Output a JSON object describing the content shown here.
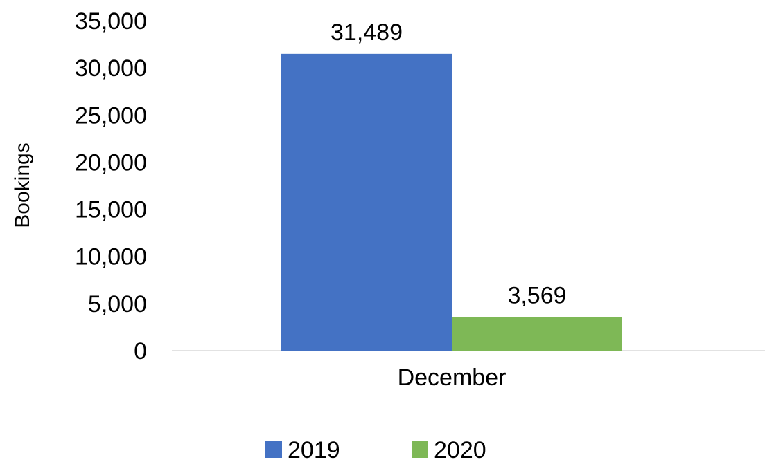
{
  "chart_data": {
    "type": "bar",
    "categories": [
      "December"
    ],
    "series": [
      {
        "name": "2019",
        "values": [
          31489
        ],
        "color": "#4472C4"
      },
      {
        "name": "2020",
        "values": [
          3569
        ],
        "color": "#7EB856"
      }
    ],
    "data_labels": [
      "31,489",
      "3,569"
    ],
    "title": "",
    "xlabel": "",
    "ylabel": "Bookings",
    "ylim": [
      0,
      35000
    ],
    "yticks": [
      0,
      5000,
      10000,
      15000,
      20000,
      25000,
      30000,
      35000
    ],
    "ytick_labels": [
      "0",
      "5,000",
      "10,000",
      "15,000",
      "20,000",
      "25,000",
      "30,000",
      "35,000"
    ],
    "grid": false,
    "legend_position": "bottom",
    "axis_line_color": "#D9D9D9"
  }
}
